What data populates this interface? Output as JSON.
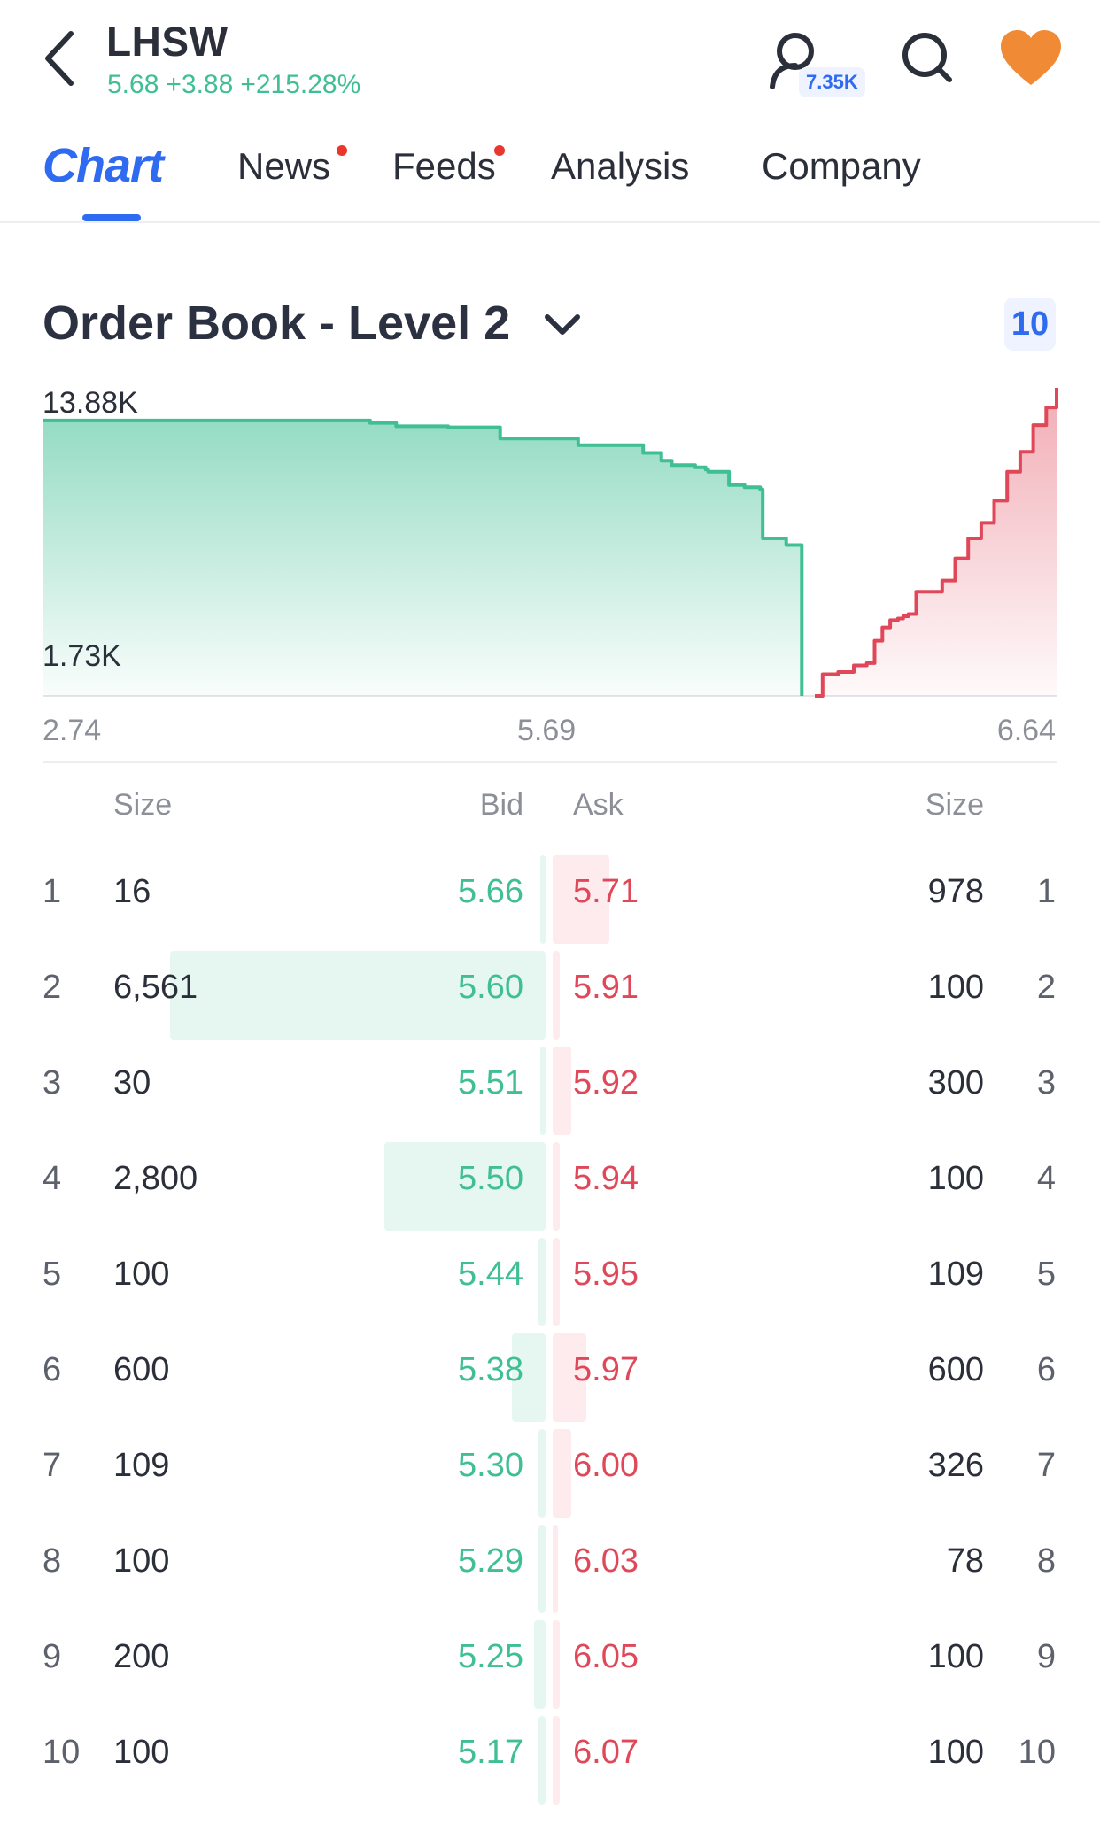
{
  "header": {
    "symbol": "LHSW",
    "price": "5.68",
    "change": "+3.88",
    "change_pct": "+215.28%",
    "followers_badge": "7.35K",
    "quote_color": "#3fbf93"
  },
  "tabs": [
    {
      "label": "Chart",
      "active": true
    },
    {
      "label": "News",
      "has_dot": true
    },
    {
      "label": "Feeds",
      "has_dot": true
    },
    {
      "label": "Analysis"
    },
    {
      "label": "Company"
    }
  ],
  "order_book": {
    "title": "Order Book - Level 2",
    "depth": "10"
  },
  "chart_data": {
    "type": "area",
    "y_labels": [
      "13.88K",
      "1.73K"
    ],
    "x_labels": [
      "2.74",
      "5.69",
      "6.64"
    ],
    "xlim": [
      2.74,
      6.64
    ],
    "ylim": [
      0,
      13880
    ],
    "bid_color": "#3fbf93",
    "ask_color": "#e0485a",
    "series": [
      {
        "name": "bid",
        "x": [
          2.74,
          3.8,
          3.9,
          4.0,
          4.1,
          4.3,
          4.5,
          4.8,
          5.05,
          5.12,
          5.16,
          5.17,
          5.25,
          5.29,
          5.3,
          5.38,
          5.44,
          5.5,
          5.51,
          5.6,
          5.66
        ],
        "values": [
          12410,
          12410,
          12410,
          12300,
          12150,
          12100,
          11600,
          11300,
          10950,
          10600,
          10400,
          10400,
          10300,
          10200,
          10100,
          9500,
          9400,
          9300,
          7100,
          6800,
          0
        ]
      },
      {
        "name": "ask",
        "x": [
          5.71,
          5.74,
          5.8,
          5.86,
          5.91,
          5.94,
          5.97,
          6.0,
          6.03,
          6.05,
          6.07,
          6.1,
          6.2,
          6.25,
          6.3,
          6.35,
          6.4,
          6.45,
          6.5,
          6.55,
          6.6,
          6.64
        ],
        "values": [
          0,
          978,
          1078,
          1378,
          1478,
          2487,
          3087,
          3413,
          3491,
          3591,
          3691,
          4700,
          5200,
          6200,
          7100,
          7800,
          8800,
          10100,
          11000,
          12200,
          13000,
          13880
        ]
      }
    ]
  },
  "table": {
    "headers": {
      "bid_size": "Size",
      "bid": "Bid",
      "ask": "Ask",
      "ask_size": "Size"
    },
    "rows": [
      {
        "level": "1",
        "bid_size": "16",
        "bid": "5.66",
        "ask": "5.71",
        "ask_size": "978",
        "level_r": "1",
        "bid_ratio": 0.01,
        "ask_ratio": 0.15
      },
      {
        "level": "2",
        "bid_size": "6,561",
        "bid": "5.60",
        "ask": "5.91",
        "ask_size": "100",
        "level_r": "2",
        "bid_ratio": 1.0,
        "ask_ratio": 0.02
      },
      {
        "level": "3",
        "bid_size": "30",
        "bid": "5.51",
        "ask": "5.92",
        "ask_size": "300",
        "level_r": "3",
        "bid_ratio": 0.01,
        "ask_ratio": 0.05
      },
      {
        "level": "4",
        "bid_size": "2,800",
        "bid": "5.50",
        "ask": "5.94",
        "ask_size": "100",
        "level_r": "4",
        "bid_ratio": 0.43,
        "ask_ratio": 0.02
      },
      {
        "level": "5",
        "bid_size": "100",
        "bid": "5.44",
        "ask": "5.95",
        "ask_size": "109",
        "level_r": "5",
        "bid_ratio": 0.02,
        "ask_ratio": 0.02
      },
      {
        "level": "6",
        "bid_size": "600",
        "bid": "5.38",
        "ask": "5.97",
        "ask_size": "600",
        "level_r": "6",
        "bid_ratio": 0.09,
        "ask_ratio": 0.09
      },
      {
        "level": "7",
        "bid_size": "109",
        "bid": "5.30",
        "ask": "6.00",
        "ask_size": "326",
        "level_r": "7",
        "bid_ratio": 0.02,
        "ask_ratio": 0.05
      },
      {
        "level": "8",
        "bid_size": "100",
        "bid": "5.29",
        "ask": "6.03",
        "ask_size": "78",
        "level_r": "8",
        "bid_ratio": 0.02,
        "ask_ratio": 0.01
      },
      {
        "level": "9",
        "bid_size": "200",
        "bid": "5.25",
        "ask": "6.05",
        "ask_size": "100",
        "level_r": "9",
        "bid_ratio": 0.03,
        "ask_ratio": 0.02
      },
      {
        "level": "10",
        "bid_size": "100",
        "bid": "5.17",
        "ask": "6.07",
        "ask_size": "100",
        "level_r": "10",
        "bid_ratio": 0.02,
        "ask_ratio": 0.02
      }
    ]
  }
}
